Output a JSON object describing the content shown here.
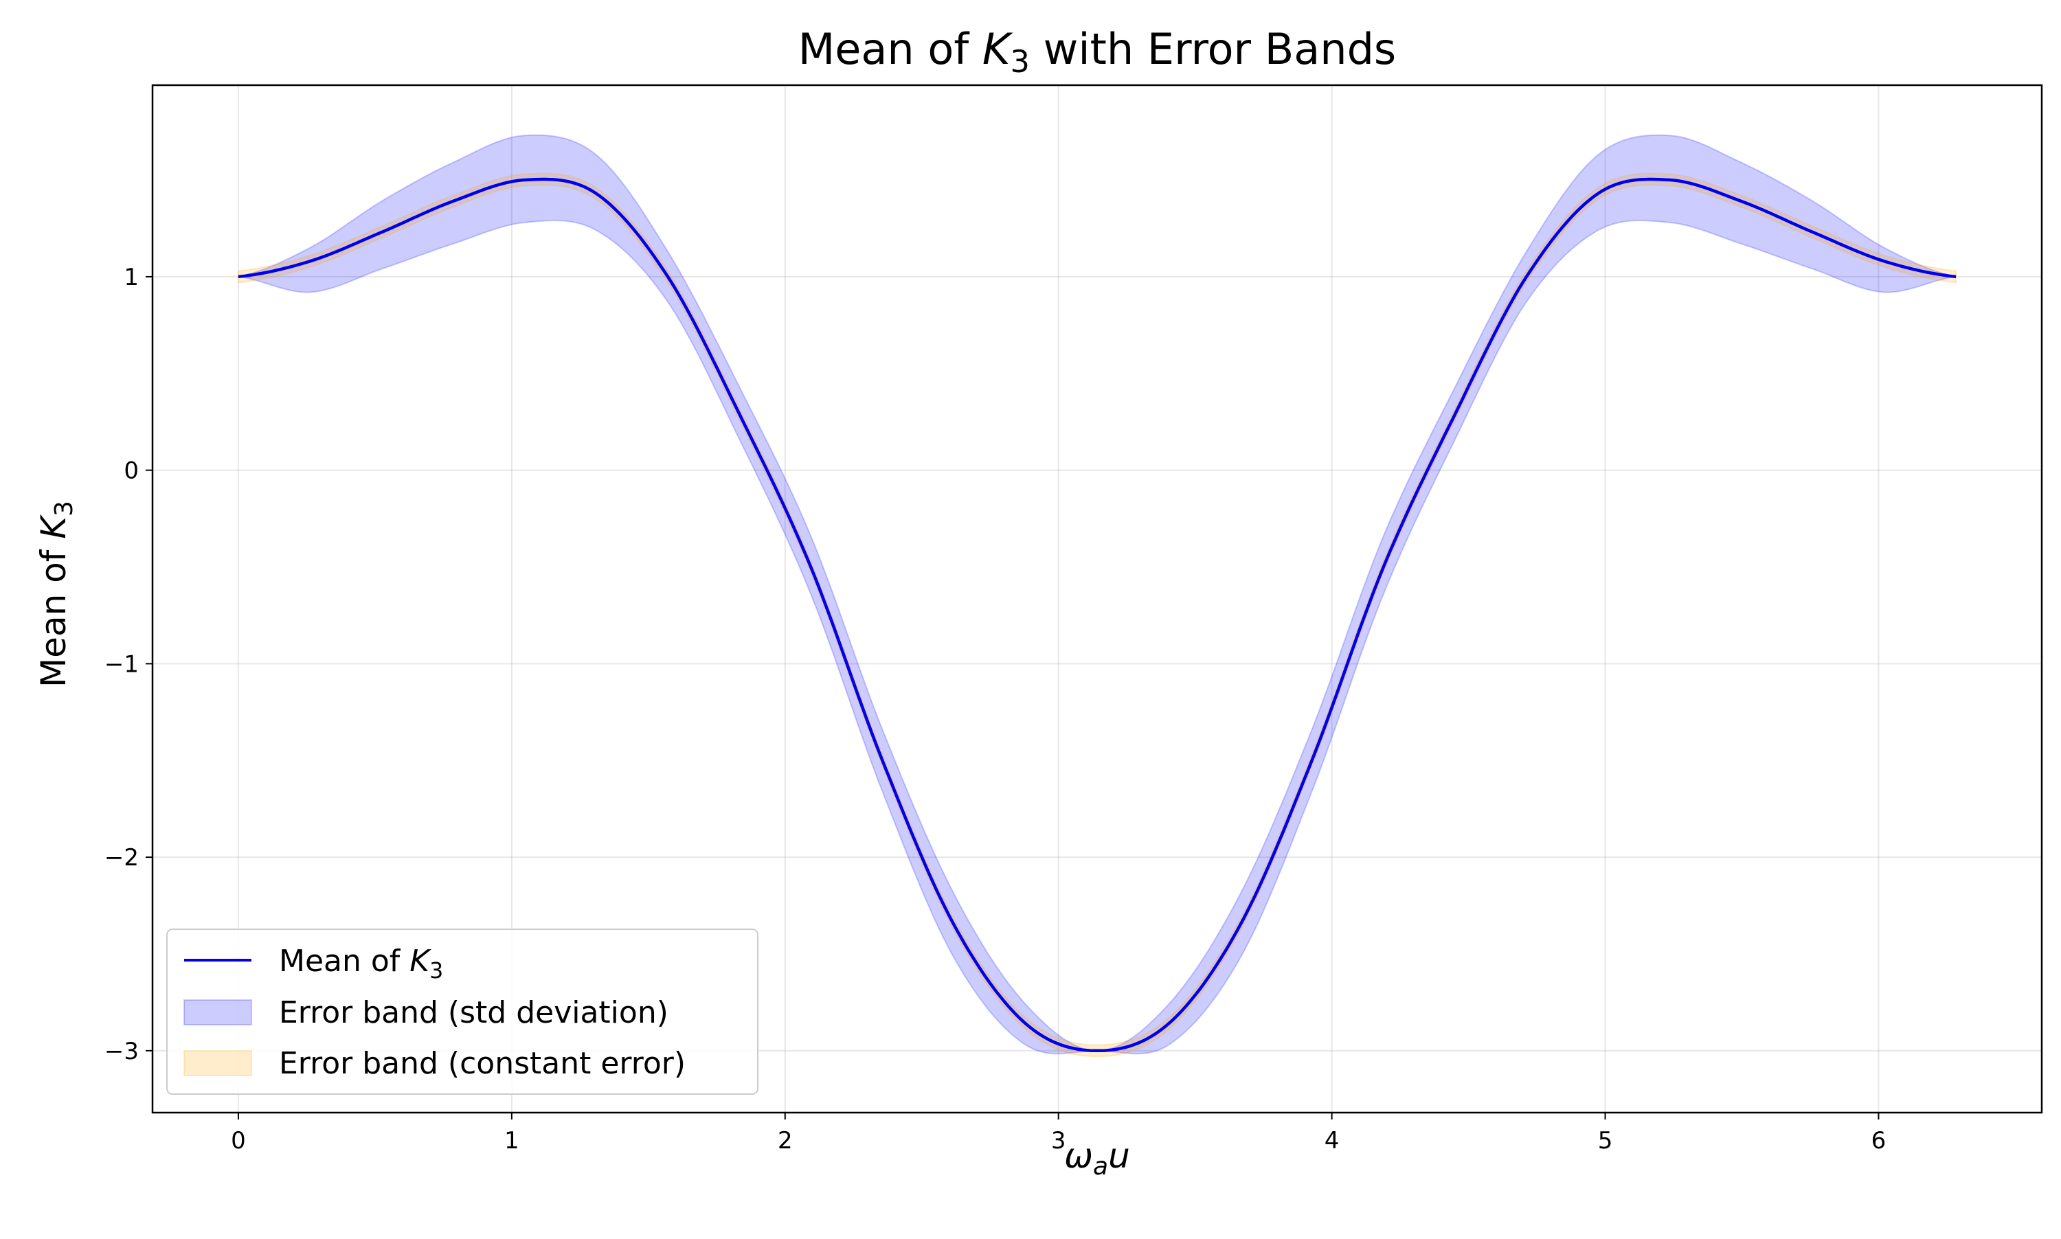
{
  "chart_data": {
    "type": "line",
    "title": {
      "prefix": "Mean of ",
      "symbol": "K",
      "subscript": "3",
      "suffix": " with Error Bands"
    },
    "xlabel": {
      "symbol": "ω",
      "subscript": "a",
      "suffix": "u"
    },
    "ylabel": {
      "prefix": "Mean of ",
      "symbol": "K",
      "subscript": "3"
    },
    "xlim": [
      -0.314,
      6.597
    ],
    "ylim": [
      -3.32,
      1.99
    ],
    "grid": true,
    "legend_position": "lower-left",
    "x_ticks": [
      0,
      1,
      2,
      3,
      4,
      5,
      6
    ],
    "x_tick_labels": [
      "0",
      "1",
      "2",
      "3",
      "4",
      "5",
      "6"
    ],
    "y_ticks": [
      1,
      0,
      -1,
      -2,
      -3
    ],
    "y_tick_labels": [
      "1",
      "0",
      "−1",
      "−2",
      "−3"
    ],
    "x": [
      0.0,
      0.262,
      0.524,
      0.785,
      1.047,
      1.309,
      1.571,
      1.833,
      2.094,
      2.356,
      2.618,
      2.88,
      3.142,
      3.403,
      3.665,
      3.927,
      4.189,
      4.451,
      4.712,
      4.974,
      5.236,
      5.498,
      5.76,
      6.021,
      6.283
    ],
    "series": [
      {
        "name": {
          "prefix": "Mean of ",
          "symbol": "K",
          "subscript": "3"
        },
        "kind": "line",
        "color": "#0000ee",
        "values": [
          1.0,
          1.08,
          1.23,
          1.39,
          1.5,
          1.43,
          1.0,
          0.29,
          -0.5,
          -1.5,
          -2.35,
          -2.86,
          -3.0,
          -2.86,
          -2.35,
          -1.5,
          -0.5,
          0.29,
          1.0,
          1.43,
          1.5,
          1.39,
          1.23,
          1.08,
          1.0
        ]
      },
      {
        "name": "Error band (std deviation)",
        "kind": "band",
        "color": "#0000ff",
        "fill_opacity": 0.2,
        "lower": [
          1.0,
          0.92,
          1.04,
          1.17,
          1.28,
          1.24,
          0.87,
          0.16,
          -0.64,
          -1.66,
          -2.52,
          -2.97,
          -3.0,
          -2.97,
          -2.52,
          -1.66,
          -0.64,
          0.16,
          0.87,
          1.24,
          1.28,
          1.17,
          1.04,
          0.92,
          1.0
        ],
        "upper": [
          1.0,
          1.15,
          1.39,
          1.59,
          1.73,
          1.63,
          1.13,
          0.43,
          -0.34,
          -1.34,
          -2.19,
          -2.76,
          -3.0,
          -2.76,
          -2.19,
          -1.34,
          -0.34,
          0.43,
          1.13,
          1.63,
          1.73,
          1.59,
          1.39,
          1.15,
          1.0
        ]
      },
      {
        "name": "Error band (constant error)",
        "kind": "band",
        "color": "#ffa500",
        "fill_opacity": 0.2,
        "lower": [
          0.97,
          1.05,
          1.2,
          1.36,
          1.47,
          1.4,
          0.97,
          0.26,
          -0.53,
          -1.53,
          -2.38,
          -2.89,
          -3.03,
          -2.89,
          -2.38,
          -1.53,
          -0.53,
          0.26,
          0.97,
          1.4,
          1.47,
          1.36,
          1.2,
          1.05,
          0.97
        ],
        "upper": [
          1.03,
          1.11,
          1.26,
          1.42,
          1.53,
          1.46,
          1.03,
          0.32,
          -0.47,
          -1.47,
          -2.32,
          -2.83,
          -2.97,
          -2.83,
          -2.32,
          -1.47,
          -0.47,
          0.32,
          1.03,
          1.46,
          1.53,
          1.42,
          1.26,
          1.11,
          1.03
        ]
      }
    ]
  }
}
